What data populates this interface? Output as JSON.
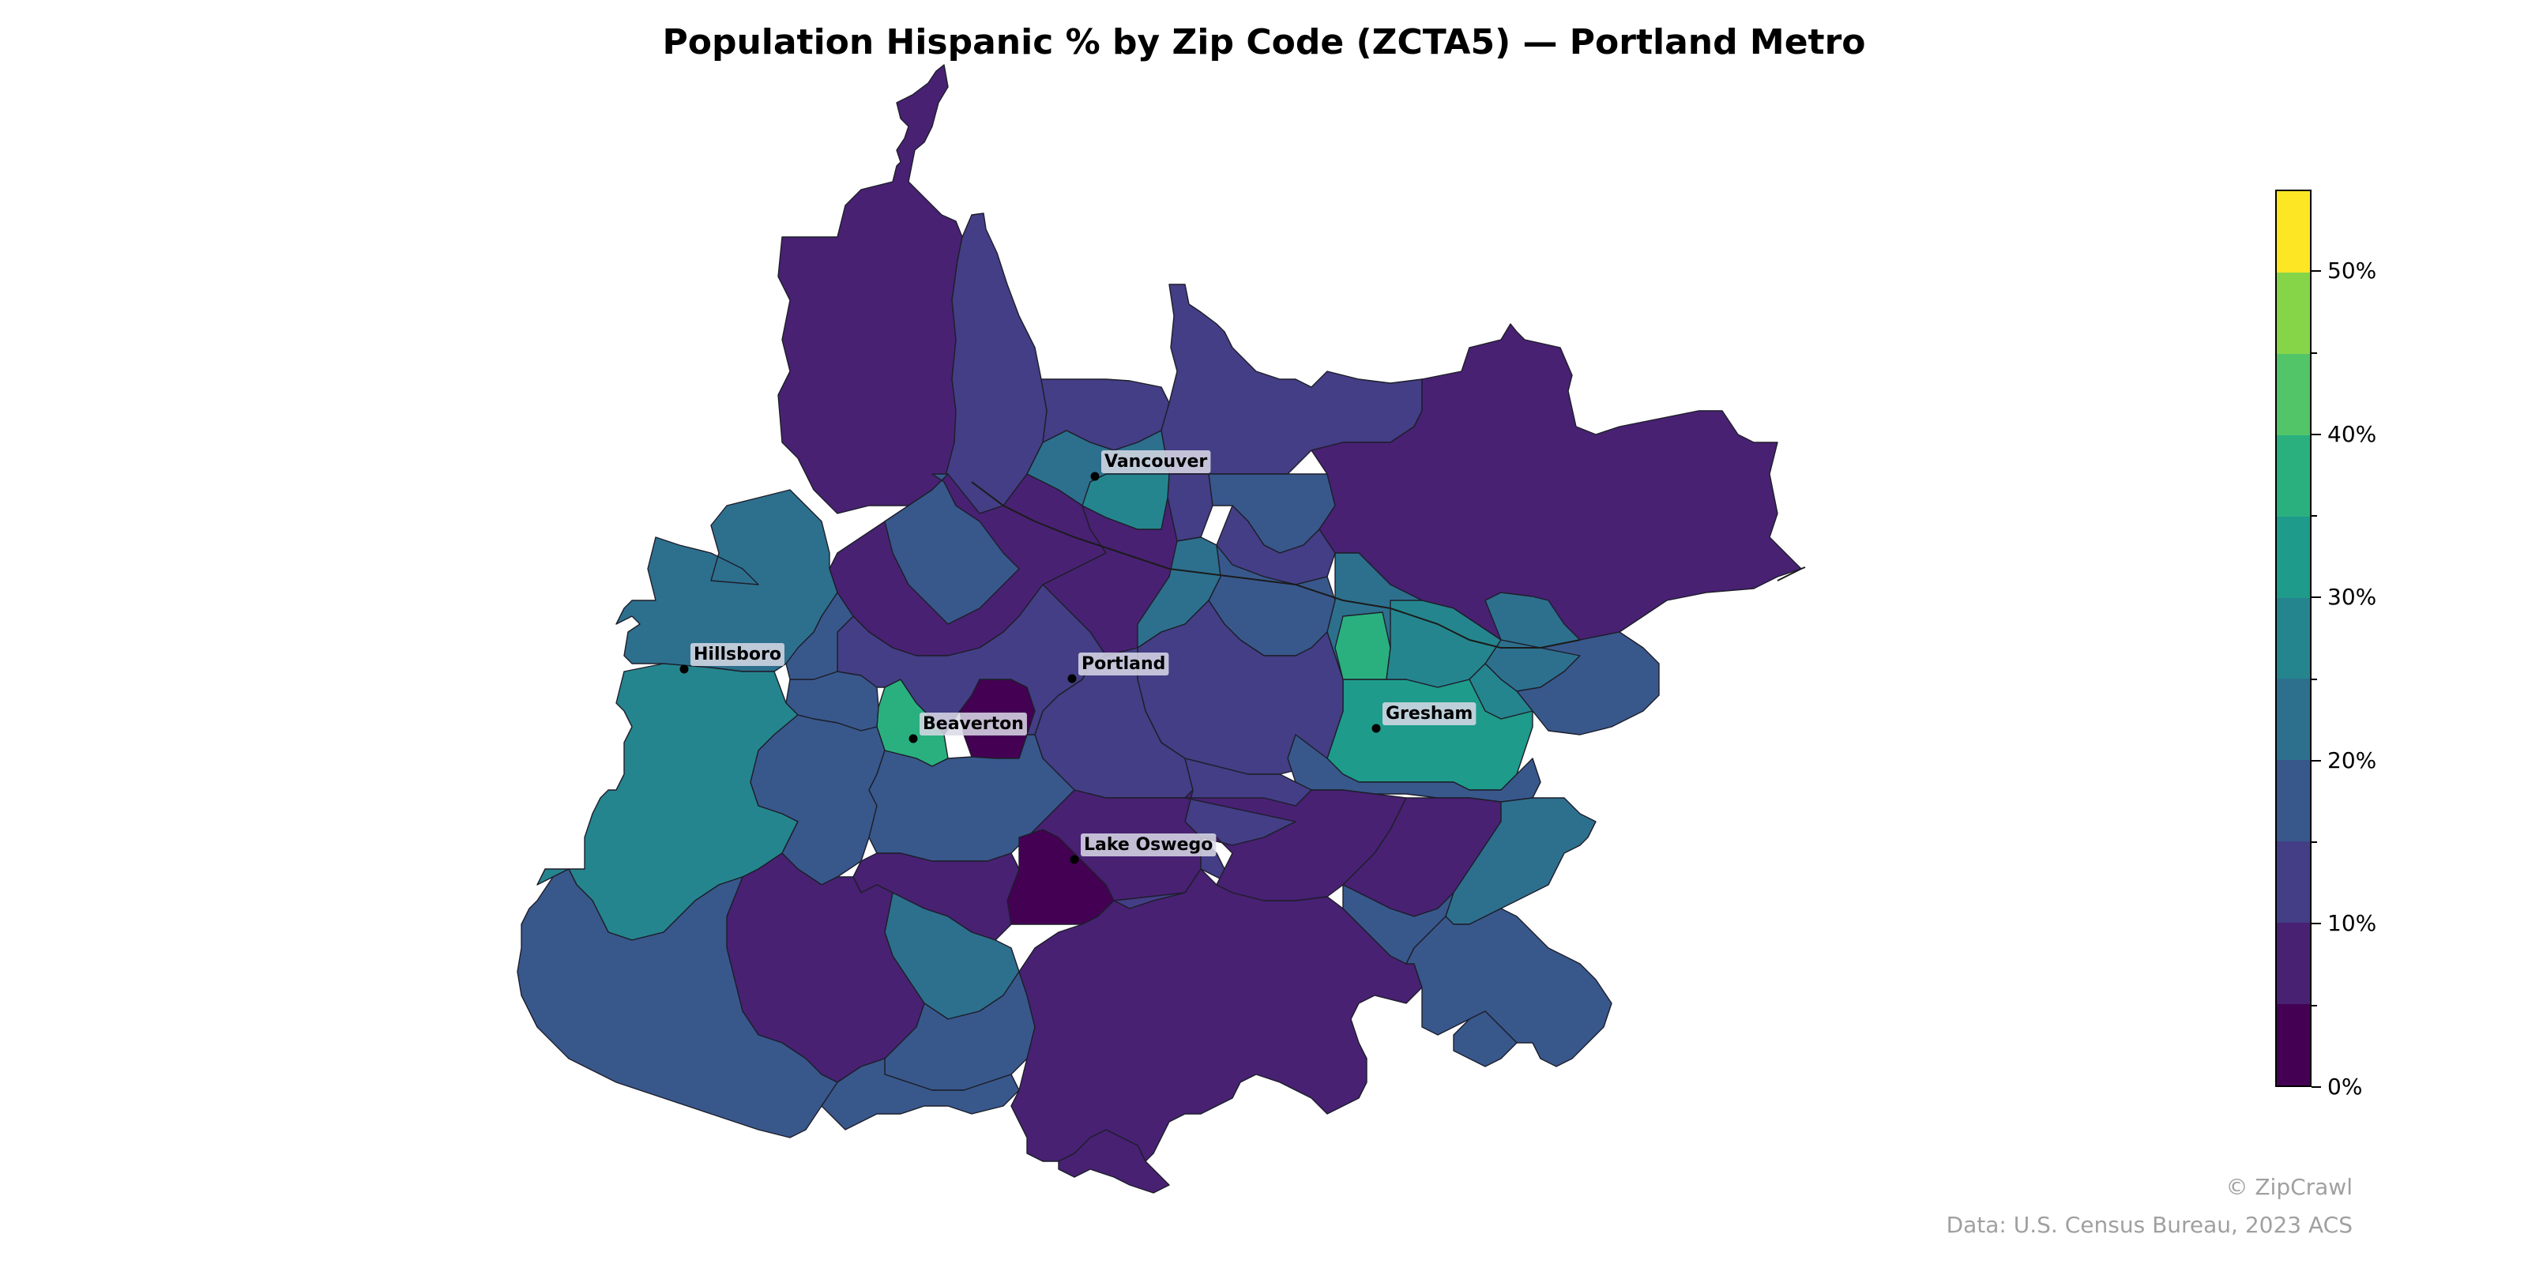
{
  "title": "Population Hispanic % by Zip Code (ZCTA5) — Portland Metro",
  "colorbar": {
    "min": 0,
    "max": 55,
    "bins": [
      {
        "from": 0,
        "to": 5,
        "color": "#440154"
      },
      {
        "from": 5,
        "to": 10,
        "color": "#482173"
      },
      {
        "from": 10,
        "to": 15,
        "color": "#433e85"
      },
      {
        "from": 15,
        "to": 20,
        "color": "#38588c"
      },
      {
        "from": 20,
        "to": 25,
        "color": "#2d708e"
      },
      {
        "from": 25,
        "to": 30,
        "color": "#25858e"
      },
      {
        "from": 30,
        "to": 35,
        "color": "#1e9b8a"
      },
      {
        "from": 35,
        "to": 40,
        "color": "#2ab07f"
      },
      {
        "from": 40,
        "to": 45,
        "color": "#52c569"
      },
      {
        "from": 45,
        "to": 50,
        "color": "#86d549"
      },
      {
        "from": 50,
        "to": 55,
        "color": "#fde725"
      }
    ],
    "ticks": [
      {
        "value": 0,
        "label": "0%"
      },
      {
        "value": 10,
        "label": "10%"
      },
      {
        "value": 20,
        "label": "20%"
      },
      {
        "value": 30,
        "label": "30%"
      },
      {
        "value": 40,
        "label": "40%"
      },
      {
        "value": 50,
        "label": "50%"
      }
    ]
  },
  "cities": [
    {
      "name": "Vancouver"
    },
    {
      "name": "Hillsboro"
    },
    {
      "name": "Portland"
    },
    {
      "name": "Beaverton"
    },
    {
      "name": "Gresham"
    },
    {
      "name": "Lake Oswego"
    }
  ],
  "credits": {
    "brand": "© ZipCrawl",
    "source": "Data: U.S. Census Bureau, 2023 ACS"
  }
}
